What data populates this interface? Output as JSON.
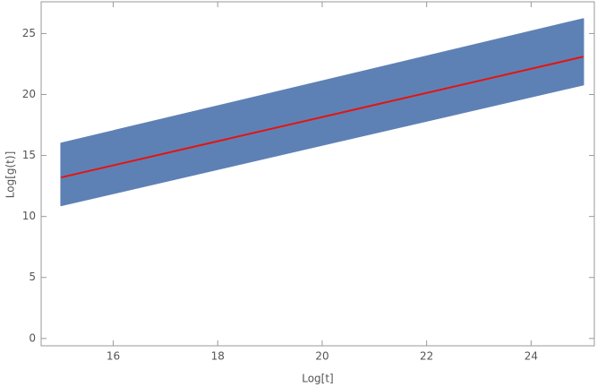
{
  "chart_data": {
    "type": "line",
    "x_label": "Log[t]",
    "y_label": "Log[g(t)]",
    "x": [
      15,
      25
    ],
    "band": {
      "color": "#5e81b5",
      "lower": [
        10.9,
        20.8
      ],
      "upper": [
        16.0,
        26.2
      ]
    },
    "series": [
      {
        "color": "#e5140f",
        "values": [
          13.2,
          23.1
        ]
      }
    ],
    "xlim": [
      14.62,
      25.21
    ],
    "xticks": [
      16,
      18,
      20,
      22,
      24
    ],
    "ylim": [
      -0.6,
      27.6
    ],
    "yticks": [
      0,
      5,
      10,
      15,
      20,
      25
    ],
    "grid": false
  }
}
